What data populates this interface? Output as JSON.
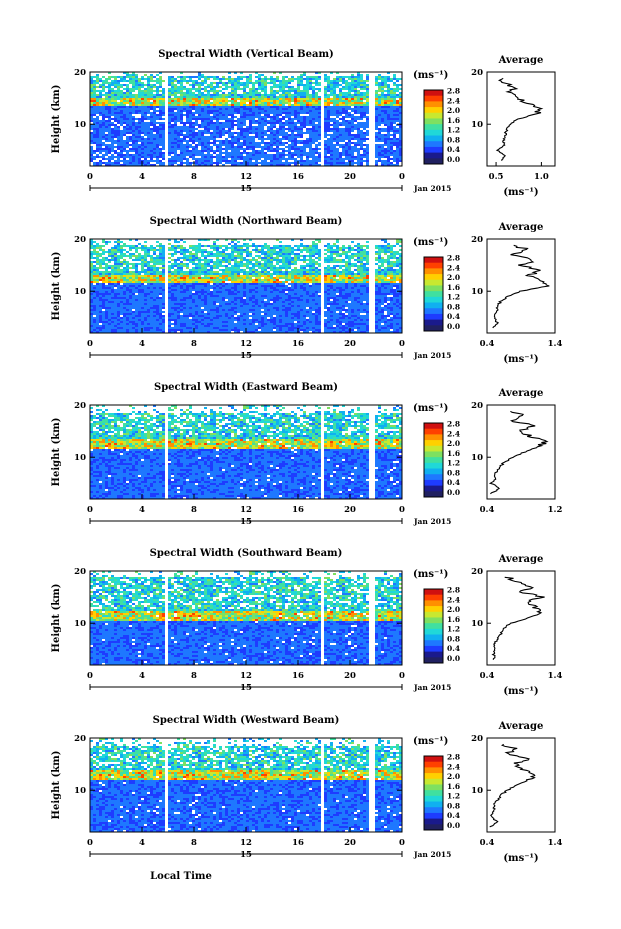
{
  "colors": {
    "colormap": [
      "#1a1a8c",
      "#1e3cff",
      "#1e78ff",
      "#10b0f0",
      "#20d8d8",
      "#40e0a0",
      "#7ee060",
      "#c8e830",
      "#ffd000",
      "#ff9000",
      "#ff4000",
      "#d01010"
    ],
    "colormap_low": "#202060",
    "axis": "#000000",
    "background": "#ffffff"
  },
  "shared": {
    "date_label": "Jan 2015",
    "day_label": "15",
    "x_ticks": [
      "0",
      "4",
      "8",
      "12",
      "16",
      "20",
      "0"
    ],
    "y_label": "Height (km)",
    "y_ticks": [
      "10",
      "20"
    ],
    "cbar_unit": "(ms⁻¹)",
    "cbar_ticks": [
      "0.0",
      "0.4",
      "0.8",
      "1.2",
      "1.6",
      "2.0",
      "2.4",
      "2.8"
    ],
    "avg_title": "Average",
    "avg_unit": "(ms⁻¹)",
    "xlabel": "Local Time"
  },
  "chart_data": [
    {
      "type": "heatmap",
      "title": "Spectral Width (Vertical Beam)",
      "xlabel": "Local Time",
      "ylabel": "Height (km)",
      "xlim": [
        0,
        24
      ],
      "ylim": [
        2,
        20
      ],
      "colorbar": {
        "unit": "(ms⁻¹)",
        "range": [
          0.0,
          2.8
        ]
      },
      "average_profile": {
        "title": "Average",
        "xlabel": "(ms⁻¹)",
        "x_ticks": [
          "0.5",
          "1.0"
        ],
        "xlim": [
          0.4,
          1.15
        ],
        "height": [
          3,
          4,
          5,
          6,
          7,
          8,
          9,
          10,
          11,
          12,
          13,
          14,
          15,
          16,
          17,
          18,
          19
        ],
        "width": [
          0.55,
          0.6,
          0.52,
          0.6,
          0.58,
          0.6,
          0.62,
          0.65,
          0.75,
          0.95,
          1.0,
          0.85,
          0.75,
          0.65,
          0.7,
          0.6,
          0.55
        ]
      }
    },
    {
      "type": "heatmap",
      "title": "Spectral Width (Northward Beam)",
      "xlabel": "Local Time",
      "ylabel": "Height (km)",
      "xlim": [
        0,
        24
      ],
      "ylim": [
        2,
        20
      ],
      "colorbar": {
        "unit": "(ms⁻¹)",
        "range": [
          0.0,
          2.8
        ]
      },
      "average_profile": {
        "title": "Average",
        "xlabel": "(ms⁻¹)",
        "x_ticks": [
          "0.4",
          "1.4"
        ],
        "xlim": [
          0.4,
          1.4
        ],
        "height": [
          3,
          4,
          5,
          6,
          7,
          8,
          9,
          10,
          11,
          12,
          13,
          14,
          15,
          16,
          17,
          18,
          19
        ],
        "width": [
          0.5,
          0.55,
          0.5,
          0.55,
          0.55,
          0.6,
          0.7,
          0.9,
          1.3,
          1.2,
          1.0,
          1.2,
          0.9,
          1.1,
          0.8,
          1.0,
          0.7
        ]
      }
    },
    {
      "type": "heatmap",
      "title": "Spectral Width (Eastward Beam)",
      "xlabel": "Local Time",
      "ylabel": "Height (km)",
      "xlim": [
        0,
        24
      ],
      "ylim": [
        2,
        20
      ],
      "colorbar": {
        "unit": "(ms⁻¹)",
        "range": [
          0.0,
          2.8
        ]
      },
      "average_profile": {
        "title": "Average",
        "xlabel": "",
        "x_ticks": [
          "0.4",
          "1.2"
        ],
        "xlim": [
          0.4,
          1.2
        ],
        "height": [
          3,
          4,
          5,
          6,
          7,
          8,
          9,
          10,
          11,
          12,
          13,
          14,
          15,
          16,
          17,
          18,
          19
        ],
        "width": [
          0.45,
          0.55,
          0.45,
          0.5,
          0.5,
          0.55,
          0.6,
          0.7,
          0.85,
          1.0,
          1.1,
          0.9,
          0.8,
          0.95,
          0.7,
          0.85,
          0.65
        ]
      }
    },
    {
      "type": "heatmap",
      "title": "Spectral Width (Southward Beam)",
      "xlabel": "Local Time",
      "ylabel": "Height (km)",
      "xlim": [
        0,
        24
      ],
      "ylim": [
        2,
        20
      ],
      "colorbar": {
        "unit": "(ms⁻¹)",
        "range": [
          0.0,
          2.8
        ]
      },
      "average_profile": {
        "title": "Average",
        "xlabel": "(ms⁻¹)",
        "x_ticks": [
          "0.4",
          "1.4"
        ],
        "xlim": [
          0.4,
          1.4
        ],
        "height": [
          3,
          4,
          5,
          6,
          7,
          8,
          9,
          10,
          11,
          12,
          13,
          14,
          15,
          16,
          17,
          18,
          19
        ],
        "width": [
          0.5,
          0.5,
          0.5,
          0.52,
          0.55,
          0.6,
          0.65,
          0.75,
          1.0,
          1.2,
          1.1,
          1.0,
          1.2,
          0.9,
          1.05,
          0.8,
          0.7
        ]
      }
    },
    {
      "type": "heatmap",
      "title": "Spectral Width (Westward Beam)",
      "xlabel": "Local Time",
      "ylabel": "Height (km)",
      "xlim": [
        0,
        24
      ],
      "ylim": [
        2,
        20
      ],
      "colorbar": {
        "unit": "(ms⁻¹)",
        "range": [
          0.0,
          2.8
        ]
      },
      "average_profile": {
        "title": "Average",
        "xlabel": "(ms⁻¹)",
        "x_ticks": [
          "0.4",
          "1.4"
        ],
        "xlim": [
          0.4,
          1.4
        ],
        "height": [
          3,
          4,
          5,
          6,
          7,
          8,
          9,
          10,
          11,
          12,
          13,
          14,
          15,
          16,
          17,
          18,
          19
        ],
        "width": [
          0.45,
          0.55,
          0.45,
          0.5,
          0.5,
          0.55,
          0.6,
          0.7,
          0.85,
          1.0,
          1.15,
          0.95,
          0.8,
          1.0,
          0.7,
          0.8,
          0.6
        ]
      }
    }
  ]
}
